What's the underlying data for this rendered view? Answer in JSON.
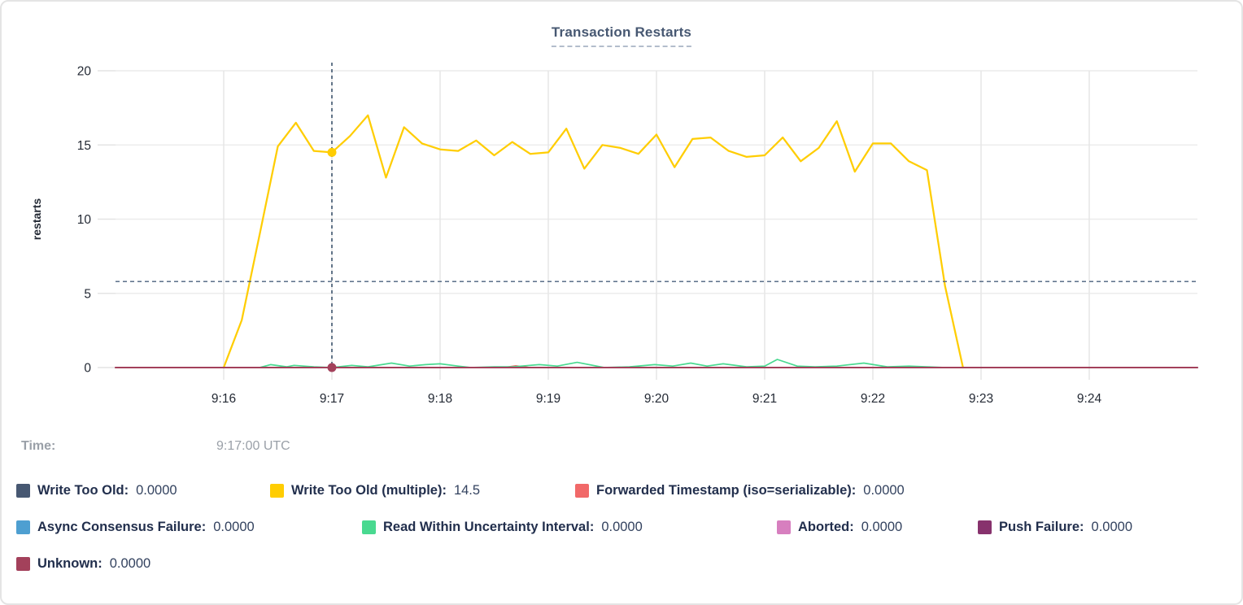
{
  "title": "Transaction Restarts",
  "tooltip": {
    "label": "Time:",
    "value": "9:17:00 UTC"
  },
  "legend": {
    "items": [
      {
        "label": "Write Too Old:",
        "value": "0.0000",
        "color": "#475872"
      },
      {
        "label": "Write Too Old (multiple):",
        "value": "14.5",
        "color": "#FFCD02"
      },
      {
        "label": "Forwarded Timestamp (iso=serializable):",
        "value": "0.0000",
        "color": "#F16969"
      },
      {
        "label": "Async Consensus Failure:",
        "value": "0.0000",
        "color": "#4E9FD1"
      },
      {
        "label": "Read Within Uncertainty Interval:",
        "value": "0.0000",
        "color": "#49D990"
      },
      {
        "label": "Aborted:",
        "value": "0.0000",
        "color": "#D77FBF"
      },
      {
        "label": "Push Failure:",
        "value": "0.0000",
        "color": "#87326D"
      },
      {
        "label": "Unknown:",
        "value": "0.0000",
        "color": "#A3415B"
      }
    ]
  },
  "chart_data": {
    "type": "line",
    "title": "Transaction Restarts",
    "xlabel": "",
    "ylabel": "restarts",
    "ylim": [
      0,
      20
    ],
    "yticks": [
      0,
      5,
      10,
      15,
      20
    ],
    "x_window": {
      "start": "9:15:00",
      "end": "9:25:00",
      "timezone": "UTC",
      "seconds": 600
    },
    "grid": true,
    "legend_position": "bottom",
    "xticks": [
      {
        "label": "9:16",
        "t": 60
      },
      {
        "label": "9:17",
        "t": 120
      },
      {
        "label": "9:18",
        "t": 180
      },
      {
        "label": "9:19",
        "t": 240
      },
      {
        "label": "9:20",
        "t": 300
      },
      {
        "label": "9:21",
        "t": 360
      },
      {
        "label": "9:22",
        "t": 420
      },
      {
        "label": "9:23",
        "t": 480
      },
      {
        "label": "9:24",
        "t": 540
      }
    ],
    "series": [
      {
        "name": "Write Too Old",
        "color": "#475872",
        "width": 1.6,
        "points": [
          [
            0,
            0
          ],
          [
            600,
            0
          ]
        ]
      },
      {
        "name": "Write Too Old (multiple)",
        "color": "#FFCD02",
        "width": 2.25,
        "points": [
          [
            60,
            0
          ],
          [
            70,
            3.2
          ],
          [
            80,
            9.0
          ],
          [
            90,
            14.9
          ],
          [
            100,
            16.5
          ],
          [
            110,
            14.6
          ],
          [
            120,
            14.5
          ],
          [
            130,
            15.6
          ],
          [
            140,
            17.0
          ],
          [
            150,
            12.8
          ],
          [
            160,
            16.2
          ],
          [
            170,
            15.1
          ],
          [
            180,
            14.7
          ],
          [
            190,
            14.6
          ],
          [
            200,
            15.3
          ],
          [
            210,
            14.3
          ],
          [
            220,
            15.2
          ],
          [
            230,
            14.4
          ],
          [
            240,
            14.5
          ],
          [
            250,
            16.1
          ],
          [
            260,
            13.4
          ],
          [
            270,
            15.0
          ],
          [
            280,
            14.8
          ],
          [
            290,
            14.4
          ],
          [
            300,
            15.7
          ],
          [
            310,
            13.5
          ],
          [
            320,
            15.4
          ],
          [
            330,
            15.5
          ],
          [
            340,
            14.6
          ],
          [
            350,
            14.2
          ],
          [
            360,
            14.3
          ],
          [
            370,
            15.5
          ],
          [
            380,
            13.9
          ],
          [
            390,
            14.8
          ],
          [
            400,
            16.6
          ],
          [
            410,
            13.2
          ],
          [
            420,
            15.1
          ],
          [
            430,
            15.1
          ],
          [
            440,
            13.9
          ],
          [
            450,
            13.3
          ],
          [
            460,
            5.5
          ],
          [
            470,
            0
          ]
        ]
      },
      {
        "name": "Forwarded Timestamp (iso=serializable)",
        "color": "#F16969",
        "width": 1.6,
        "points": [
          [
            0,
            0
          ],
          [
            215,
            0
          ],
          [
            222,
            0.12
          ],
          [
            230,
            0
          ],
          [
            600,
            0
          ]
        ]
      },
      {
        "name": "Async Consensus Failure",
        "color": "#4E9FD1",
        "width": 1.6,
        "points": [
          [
            0,
            0
          ],
          [
            600,
            0
          ]
        ]
      },
      {
        "name": "Read Within Uncertainty Interval",
        "color": "#49D990",
        "width": 1.7,
        "points": [
          [
            80,
            0
          ],
          [
            86,
            0.2
          ],
          [
            95,
            0.05
          ],
          [
            99,
            0.15
          ],
          [
            110,
            0.05
          ],
          [
            120,
            0
          ],
          [
            131,
            0.15
          ],
          [
            140,
            0.05
          ],
          [
            153,
            0.3
          ],
          [
            163,
            0.1
          ],
          [
            172,
            0.2
          ],
          [
            180,
            0.25
          ],
          [
            190,
            0.1
          ],
          [
            197,
            0
          ],
          [
            210,
            0.05
          ],
          [
            220,
            0.05
          ],
          [
            235,
            0.2
          ],
          [
            245,
            0.1
          ],
          [
            256,
            0.35
          ],
          [
            271,
            0
          ],
          [
            285,
            0.05
          ],
          [
            299,
            0.2
          ],
          [
            309,
            0.1
          ],
          [
            319,
            0.3
          ],
          [
            328,
            0.1
          ],
          [
            337,
            0.25
          ],
          [
            350,
            0.05
          ],
          [
            360,
            0.1
          ],
          [
            367,
            0.55
          ],
          [
            378,
            0.1
          ],
          [
            388,
            0.05
          ],
          [
            400,
            0.1
          ],
          [
            415,
            0.3
          ],
          [
            428,
            0.05
          ],
          [
            440,
            0.1
          ],
          [
            450,
            0.05
          ],
          [
            460,
            0
          ],
          [
            480,
            0
          ],
          [
            540,
            0
          ]
        ]
      },
      {
        "name": "Aborted",
        "color": "#D77FBF",
        "width": 1.6,
        "points": [
          [
            0,
            0
          ],
          [
            600,
            0
          ]
        ]
      },
      {
        "name": "Push Failure",
        "color": "#87326D",
        "width": 1.6,
        "points": [
          [
            0,
            0
          ],
          [
            600,
            0
          ]
        ]
      },
      {
        "name": "Unknown",
        "color": "#A3415B",
        "width": 2,
        "points": [
          [
            0,
            0
          ],
          [
            600,
            0
          ]
        ]
      }
    ],
    "crosshair": {
      "t": 120,
      "time_label": "9:17:00 UTC",
      "hline_value": 5.8,
      "dots": [
        {
          "v": 14.5,
          "color": "#FFCD02"
        },
        {
          "v": 0,
          "color": "#A3415B"
        }
      ]
    }
  }
}
